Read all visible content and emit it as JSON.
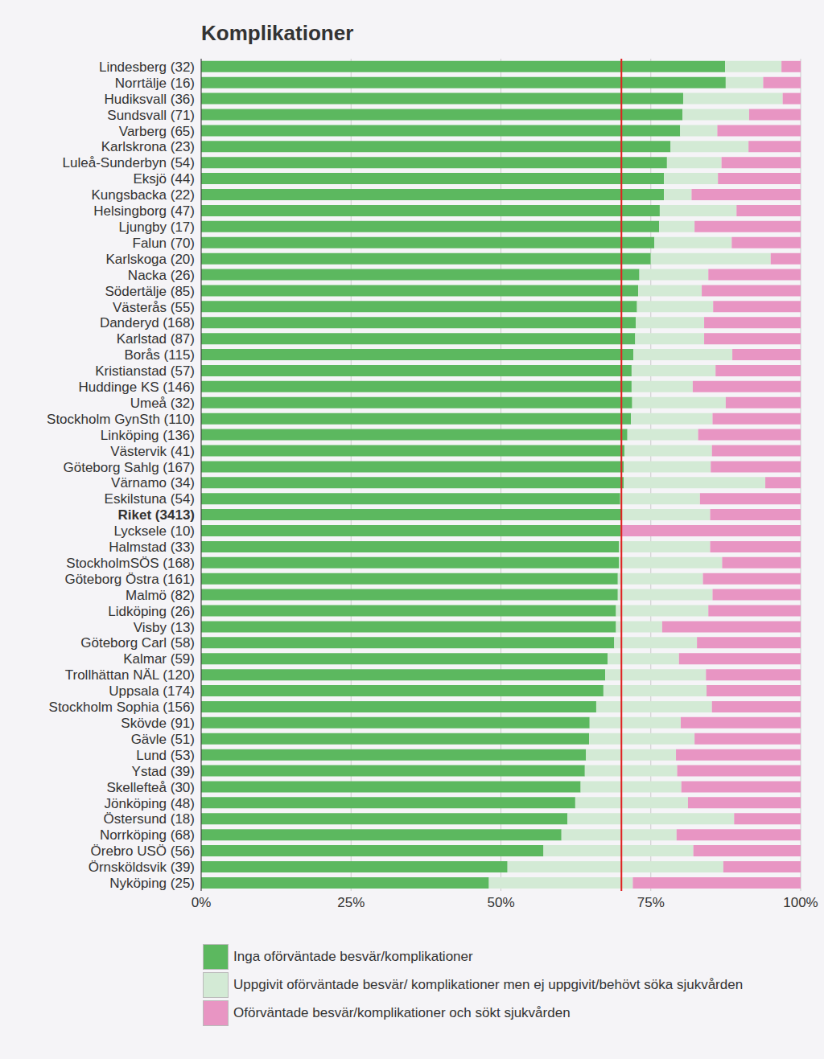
{
  "chart_data": {
    "type": "bar",
    "title": "Komplikationer",
    "orientation": "horizontal",
    "stacked": true,
    "grid": true,
    "categories": [
      "Lindesberg (32)",
      "Norrtälje (16)",
      "Hudiksvall (36)",
      "Sundsvall (71)",
      "Varberg (65)",
      "Karlskrona (23)",
      "Luleå-Sunderbyn (54)",
      "Eksjö (44)",
      "Kungsbacka (22)",
      "Helsingborg (47)",
      "Ljungby (17)",
      "Falun (70)",
      "Karlskoga (20)",
      "Nacka (26)",
      "Södertälje (85)",
      "Västerås (55)",
      "Danderyd (168)",
      "Karlstad (87)",
      "Borås (115)",
      "Kristianstad (57)",
      "Huddinge KS (146)",
      "Umeå (32)",
      "Stockholm GynSth (110)",
      "Linköping (136)",
      "Västervik (41)",
      "Göteborg Sahlg (167)",
      "Värnamo (34)",
      "Eskilstuna (54)",
      "Riket (3413)",
      "Lycksele (10)",
      "Halmstad (33)",
      "StockholmSÖS (168)",
      "Göteborg Östra (161)",
      "Malmö (82)",
      "Lidköping (26)",
      "Visby (13)",
      "Göteborg Carl (58)",
      "Kalmar (59)",
      "Trollhättan NÄL (120)",
      "Uppsala (174)",
      "Stockholm Sophia (156)",
      "Skövde (91)",
      "Gävle (51)",
      "Lund (53)",
      "Ystad (39)",
      "Skellefteå (30)",
      "Jönköping (48)",
      "Östersund (18)",
      "Norrköping (68)",
      "Örebro USÖ (56)",
      "Örnsköldsvik (39)",
      "Nyköping (25)"
    ],
    "series": [
      {
        "name": "Inga oförväntade besvär/komplikationer",
        "color": "#5cb85f",
        "values": [
          87.4,
          87.5,
          80.4,
          80.3,
          79.9,
          78.3,
          77.7,
          77.2,
          77.2,
          76.5,
          76.4,
          75.6,
          75,
          73.1,
          72.9,
          72.7,
          72.5,
          72.4,
          72.1,
          71.8,
          71.8,
          71.9,
          71.7,
          71.1,
          70.6,
          70.5,
          70.5,
          69.9,
          70.1,
          70,
          69.7,
          69.7,
          69.5,
          69.5,
          69.2,
          69.2,
          68.9,
          67.8,
          67.4,
          67.1,
          65.9,
          64.8,
          64.7,
          64.2,
          64.0,
          63.3,
          62.4,
          61.1,
          60.1,
          57.1,
          51.1,
          48
        ]
      },
      {
        "name": "Uppgivit oförväntade besvär/ komplikationer men ej uppgivit/behövt söka sjukvården",
        "color": "#d3ead5",
        "values": [
          9.4,
          6.25,
          16.6,
          11.1,
          6.2,
          13.0,
          9.1,
          9.0,
          4.6,
          12.8,
          5.9,
          12.9,
          20,
          11.5,
          10.6,
          12.7,
          11.4,
          11.5,
          16.5,
          14.0,
          10.2,
          15.6,
          13.6,
          11.8,
          14.6,
          14.5,
          23.6,
          13.3,
          14.8,
          0,
          15.2,
          17.2,
          14.2,
          15.8,
          15.4,
          7.7,
          13.8,
          11.9,
          16.8,
          17.2,
          19.3,
          15.2,
          17.6,
          15.0,
          15.4,
          16.8,
          18.8,
          27.8,
          19.2,
          25.0,
          36.0,
          24
        ]
      },
      {
        "name": "Oförväntade besvär/komplikationer och sökt sjukvården",
        "color": "#e895c3",
        "values": [
          3.2,
          6.25,
          3.0,
          8.6,
          13.9,
          8.7,
          13.2,
          13.8,
          18.2,
          10.7,
          17.7,
          11.5,
          5,
          15.4,
          16.5,
          14.6,
          16.1,
          16.1,
          11.4,
          14.2,
          18.0,
          12.5,
          14.7,
          17.1,
          14.8,
          15.0,
          5.9,
          16.8,
          15.1,
          30,
          15.1,
          13.1,
          16.3,
          14.7,
          15.4,
          23.1,
          17.3,
          20.3,
          15.8,
          15.7,
          14.8,
          20.0,
          17.7,
          20.8,
          20.6,
          19.9,
          18.8,
          11.1,
          20.7,
          17.9,
          12.9,
          28
        ]
      }
    ],
    "reference_line": 70.1,
    "reference_color": "#e02020",
    "xlim": [
      0,
      100
    ],
    "xticks": [
      {
        "value": 0,
        "label": "0%"
      },
      {
        "value": 25,
        "label": "25%"
      },
      {
        "value": 50,
        "label": "50%"
      },
      {
        "value": 75,
        "label": "75%"
      },
      {
        "value": 100,
        "label": "100%"
      }
    ]
  }
}
